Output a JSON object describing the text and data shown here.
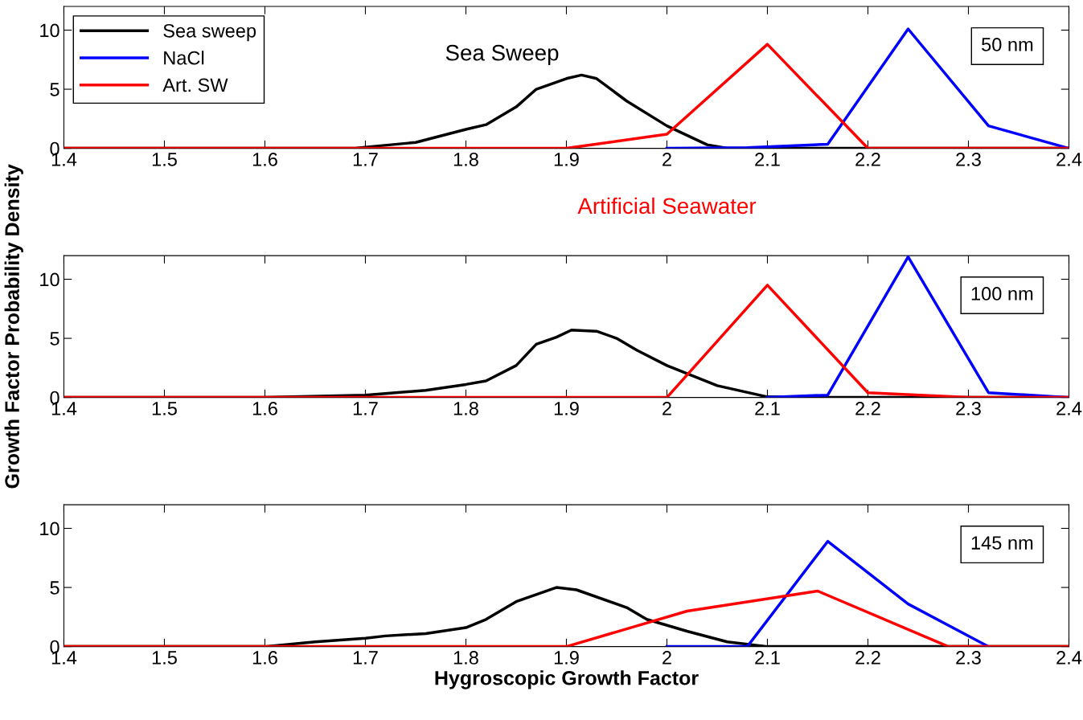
{
  "chart_data": [
    {
      "type": "line",
      "xlim": [
        1.4,
        2.4
      ],
      "ylim": [
        0,
        12
      ],
      "xticks": [
        1.4,
        1.5,
        1.6,
        1.7,
        1.8,
        1.9,
        2,
        2.1,
        2.2,
        2.3,
        2.4
      ],
      "yticks": [
        0,
        5,
        10
      ],
      "grid": false,
      "legend": "top left",
      "marker": "none",
      "line_style": "solid",
      "annotations": [
        "50 nm",
        "Sea Sweep",
        "Artificial Seawater"
      ],
      "series": [
        {
          "name": "Sea sweep",
          "color": "#000000",
          "x": [
            1.4,
            1.69,
            1.7,
            1.75,
            1.8,
            1.82,
            1.85,
            1.87,
            1.9,
            1.915,
            1.93,
            1.96,
            2.0,
            2.04,
            2.06,
            2.4
          ],
          "values": [
            0,
            0,
            0.1,
            0.5,
            1.6,
            2.0,
            3.5,
            5.0,
            5.9,
            6.2,
            5.9,
            4.0,
            1.9,
            0.3,
            0,
            0
          ]
        },
        {
          "name": "NaCl",
          "color": "#0000ff",
          "x": [
            2.0,
            2.08,
            2.16,
            2.24,
            2.32,
            2.4
          ],
          "values": [
            0,
            0.05,
            0.35,
            10.1,
            1.9,
            0
          ]
        },
        {
          "name": "Art. SW",
          "color": "#ff0000",
          "x": [
            1.4,
            1.9,
            2.0,
            2.1,
            2.2,
            2.4
          ],
          "values": [
            0,
            0,
            1.2,
            8.8,
            0,
            0
          ]
        }
      ]
    },
    {
      "type": "line",
      "xlim": [
        1.4,
        2.4
      ],
      "ylim": [
        0,
        12
      ],
      "xticks": [
        1.4,
        1.5,
        1.6,
        1.7,
        1.8,
        1.9,
        2,
        2.1,
        2.2,
        2.3,
        2.4
      ],
      "yticks": [
        0,
        5,
        10
      ],
      "grid": false,
      "legend": false,
      "marker": "none",
      "line_style": "solid",
      "ylabel": "Growth Factor Probability Density",
      "annotations": [
        "100 nm"
      ],
      "series": [
        {
          "color": "#000000",
          "x": [
            1.4,
            1.6,
            1.7,
            1.76,
            1.8,
            1.82,
            1.85,
            1.87,
            1.89,
            1.905,
            1.93,
            1.95,
            1.97,
            2.0,
            2.05,
            2.1,
            2.16,
            2.4
          ],
          "values": [
            0,
            0,
            0.2,
            0.6,
            1.1,
            1.4,
            2.7,
            4.5,
            5.1,
            5.7,
            5.6,
            5.0,
            4.0,
            2.7,
            1.0,
            0.05,
            0,
            0
          ]
        },
        {
          "color": "#0000ff",
          "x": [
            2.1,
            2.16,
            2.24,
            2.32,
            2.4
          ],
          "values": [
            0,
            0.2,
            11.9,
            0.4,
            0
          ]
        },
        {
          "color": "#ff0000",
          "x": [
            1.4,
            2.0,
            2.1,
            2.2,
            2.3,
            2.4
          ],
          "values": [
            0,
            0,
            9.5,
            0.4,
            0,
            0
          ]
        }
      ]
    },
    {
      "type": "line",
      "xlim": [
        1.4,
        2.4
      ],
      "ylim": [
        0,
        12
      ],
      "xticks": [
        1.4,
        1.5,
        1.6,
        1.7,
        1.8,
        1.9,
        2,
        2.1,
        2.2,
        2.3,
        2.4
      ],
      "yticks": [
        0,
        5,
        10
      ],
      "grid": false,
      "legend": false,
      "marker": "none",
      "line_style": "solid",
      "xlabel": "Hygroscopic Growth Factor",
      "annotations": [
        "145 nm"
      ],
      "series": [
        {
          "color": "#000000",
          "x": [
            1.4,
            1.6,
            1.65,
            1.7,
            1.72,
            1.76,
            1.8,
            1.82,
            1.85,
            1.87,
            1.89,
            1.91,
            1.96,
            1.98,
            2.02,
            2.06,
            2.1,
            2.4
          ],
          "values": [
            0,
            0,
            0.4,
            0.7,
            0.9,
            1.1,
            1.6,
            2.3,
            3.8,
            4.4,
            5.0,
            4.8,
            3.3,
            2.3,
            1.3,
            0.4,
            0,
            0
          ]
        },
        {
          "color": "#0000ff",
          "x": [
            2.0,
            2.08,
            2.16,
            2.24,
            2.32
          ],
          "values": [
            0,
            0,
            8.9,
            3.6,
            0
          ]
        },
        {
          "color": "#ff0000",
          "x": [
            1.4,
            1.9,
            2.02,
            2.15,
            2.28,
            2.4
          ],
          "values": [
            0,
            0,
            3.0,
            4.7,
            0,
            0
          ]
        }
      ]
    }
  ]
}
